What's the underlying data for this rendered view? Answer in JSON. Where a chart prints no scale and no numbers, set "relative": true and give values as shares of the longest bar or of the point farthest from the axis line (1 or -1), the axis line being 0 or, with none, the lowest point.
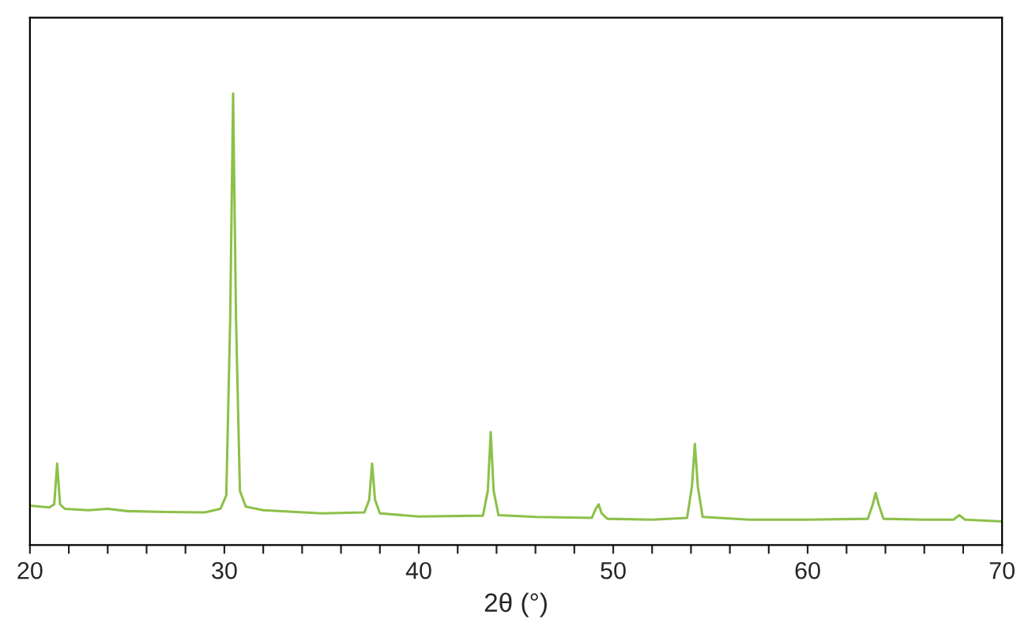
{
  "chart_data": {
    "type": "line",
    "xlabel": "2θ (°)",
    "relative": true,
    "tick_labels": "x",
    "grid": false,
    "legend": false,
    "xlim": [
      20,
      70
    ],
    "xticks": [
      20,
      {
        "value": 22,
        "label": null
      },
      {
        "value": 24,
        "label": null
      },
      {
        "value": 26,
        "label": null
      },
      {
        "value": 28,
        "label": null
      },
      30,
      {
        "value": 32,
        "label": null
      },
      {
        "value": 34,
        "label": null
      },
      {
        "value": 36,
        "label": null
      },
      {
        "value": 38,
        "label": null
      },
      40,
      {
        "value": 42,
        "label": null
      },
      {
        "value": 44,
        "label": null
      },
      {
        "value": 46,
        "label": null
      },
      {
        "value": 48,
        "label": null
      },
      50,
      {
        "value": 52,
        "label": null
      },
      {
        "value": 54,
        "label": null
      },
      {
        "value": 56,
        "label": null
      },
      {
        "value": 58,
        "label": null
      },
      60,
      {
        "value": 62,
        "label": null
      },
      {
        "value": 64,
        "label": null
      },
      {
        "value": 66,
        "label": null
      },
      {
        "value": 68,
        "label": null
      },
      70
    ],
    "series": [
      {
        "color": "#8dc04a",
        "x": [
          20,
          21.0,
          21.25,
          21.4,
          21.55,
          21.8,
          23,
          24,
          25,
          27,
          29,
          29.8,
          30.1,
          30.3,
          30.45,
          30.6,
          30.8,
          31.1,
          32,
          35,
          37.2,
          37.45,
          37.6,
          37.75,
          38,
          40,
          43.3,
          43.55,
          43.7,
          43.85,
          44.1,
          46,
          48.9,
          49.1,
          49.25,
          49.4,
          49.7,
          52,
          53.8,
          54.05,
          54.2,
          54.35,
          54.6,
          57,
          60,
          63.1,
          63.35,
          63.5,
          63.65,
          63.9,
          66,
          67.5,
          67.8,
          68.1,
          70
        ],
        "values": [
          0.087,
          0.083,
          0.09,
          0.18,
          0.09,
          0.08,
          0.077,
          0.08,
          0.075,
          0.073,
          0.072,
          0.08,
          0.11,
          0.5,
          1.0,
          0.5,
          0.12,
          0.085,
          0.077,
          0.07,
          0.072,
          0.1,
          0.18,
          0.1,
          0.07,
          0.063,
          0.065,
          0.12,
          0.25,
          0.12,
          0.066,
          0.062,
          0.06,
          0.08,
          0.09,
          0.07,
          0.058,
          0.056,
          0.06,
          0.13,
          0.224,
          0.13,
          0.062,
          0.056,
          0.056,
          0.058,
          0.09,
          0.115,
          0.09,
          0.058,
          0.056,
          0.056,
          0.066,
          0.056,
          0.052
        ]
      }
    ]
  }
}
